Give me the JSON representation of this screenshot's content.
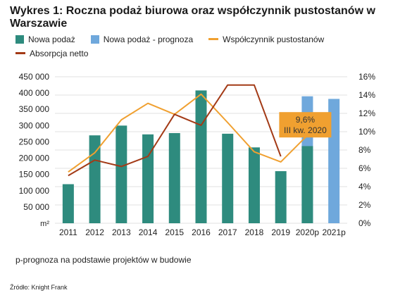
{
  "title": "Wykres 1: Roczna podaż biurowa oraz współczynnik pustostanów w Warszawie",
  "legend": {
    "items": [
      {
        "label": "Nowa podaż",
        "color": "#2e8b7e",
        "shape": "box"
      },
      {
        "label": "Nowa podaż - prognoza",
        "color": "#6fa8dc",
        "shape": "box"
      },
      {
        "label": "Współczynnik pustostanów",
        "color": "#f0a030",
        "shape": "line"
      },
      {
        "label": "Absorpcja netto",
        "color": "#a33a16",
        "shape": "line"
      }
    ]
  },
  "footnote": "p-prognoza na podstawie projektów w budowie",
  "source": "Źródło: Knight Frank",
  "chart_data": {
    "type": "bar",
    "categories": [
      "2011",
      "2012",
      "2013",
      "2014",
      "2015",
      "2016",
      "2017",
      "2018",
      "2019",
      "2020p",
      "2021p"
    ],
    "y_left": {
      "unit": "m²",
      "ylim": [
        0,
        450000
      ],
      "ticks": [
        "50 000",
        "100 000",
        "150 000",
        "200 000",
        "250 000",
        "300 000",
        "350 000",
        "400 000",
        "450 000"
      ],
      "bottom_label": "m²"
    },
    "y_right": {
      "ylim": [
        0,
        16
      ],
      "ticks": [
        "0%",
        "2%",
        "4%",
        "6%",
        "8%",
        "10%",
        "12%",
        "14%",
        "16%"
      ]
    },
    "series": [
      {
        "name": "Nowa podaż",
        "type": "bar",
        "axis": "left",
        "color": "#2e8b7e",
        "values": [
          120000,
          270000,
          300000,
          273000,
          277000,
          408000,
          275000,
          233000,
          160000,
          237000,
          null
        ]
      },
      {
        "name": "Nowa podaż - prognoza",
        "type": "bar",
        "axis": "left",
        "color": "#6fa8dc",
        "values": [
          null,
          null,
          null,
          null,
          null,
          null,
          null,
          null,
          null,
          390000,
          382000
        ]
      },
      {
        "name": "Współczynnik pustostanów",
        "type": "line",
        "axis": "right",
        "color": "#f0a030",
        "values": [
          5.6,
          7.7,
          11.3,
          13.1,
          11.9,
          14.1,
          11.0,
          7.8,
          6.7,
          9.6,
          null
        ]
      },
      {
        "name": "Absorpcja netto",
        "type": "line",
        "axis": "right",
        "color": "#a33a16",
        "values": [
          5.2,
          6.9,
          6.2,
          7.3,
          11.9,
          10.7,
          15.1,
          15.1,
          7.3,
          null,
          null
        ]
      }
    ],
    "annotation": {
      "line1": "9,6%",
      "line2": "III kw. 2020",
      "color": "#f0a030",
      "category": "2020p",
      "value": 9.6
    },
    "grid": true
  }
}
